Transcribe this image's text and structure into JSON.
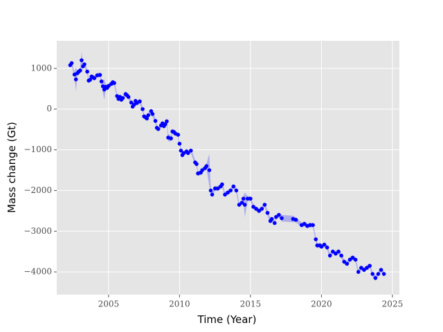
{
  "chart_data": {
    "type": "scatter",
    "x_label": "Time (Year)",
    "y_label": "Mass change (Gt)",
    "xlim": [
      2001.35,
      2025.49
    ],
    "ylim": [
      -4559,
      1678
    ],
    "xticks": [
      2005,
      2010,
      2015,
      2020,
      2025
    ],
    "yticks": [
      {
        "value": -4000,
        "label": "−4000"
      },
      {
        "value": -3000,
        "label": "−3000"
      },
      {
        "value": -2000,
        "label": "−2000"
      },
      {
        "value": -1000,
        "label": "−1000"
      },
      0,
      1000
    ],
    "grid": true,
    "background": "#e5e5e5",
    "band_color": "#6a6af0",
    "x": [
      2002.3,
      2002.4,
      2002.6,
      2002.7,
      2002.8,
      2002.9,
      2003.0,
      2003.1,
      2003.2,
      2003.3,
      2003.5,
      2003.6,
      2003.7,
      2003.8,
      2003.9,
      2004.0,
      2004.2,
      2004.4,
      2004.5,
      2004.6,
      2004.7,
      2004.8,
      2004.9,
      2005.0,
      2005.2,
      2005.3,
      2005.4,
      2005.6,
      2005.7,
      2005.8,
      2005.9,
      2006.0,
      2006.2,
      2006.3,
      2006.4,
      2006.6,
      2006.7,
      2006.8,
      2006.9,
      2007.0,
      2007.2,
      2007.4,
      2007.5,
      2007.6,
      2007.7,
      2007.8,
      2008.0,
      2008.1,
      2008.3,
      2008.4,
      2008.5,
      2008.7,
      2008.8,
      2008.9,
      2009.0,
      2009.1,
      2009.2,
      2009.4,
      2009.5,
      2009.6,
      2009.7,
      2009.9,
      2010.0,
      2010.1,
      2010.2,
      2010.3,
      2010.5,
      2010.6,
      2010.8,
      2011.1,
      2011.2,
      2011.3,
      2011.5,
      2011.6,
      2011.8,
      2011.9,
      2012.1,
      2012.2,
      2012.3,
      2012.5,
      2012.7,
      2012.9,
      2013.0,
      2013.2,
      2013.4,
      2013.6,
      2013.8,
      2014.0,
      2014.2,
      2014.4,
      2014.5,
      2014.6,
      2014.8,
      2015.0,
      2015.2,
      2015.4,
      2015.6,
      2015.8,
      2016.0,
      2016.2,
      2016.4,
      2016.5,
      2016.7,
      2016.8,
      2017.0,
      2017.2,
      2018.0,
      2018.2,
      2018.6,
      2018.8,
      2019.0,
      2019.2,
      2019.4,
      2019.6,
      2019.7,
      2019.9,
      2020.0,
      2020.2,
      2020.4,
      2020.6,
      2020.8,
      2021.0,
      2021.2,
      2021.4,
      2021.6,
      2021.8,
      2022.0,
      2022.2,
      2022.4,
      2022.6,
      2022.8,
      2023.0,
      2023.2,
      2023.4,
      2023.6,
      2023.8,
      2024.0,
      2024.2,
      2024.4
    ],
    "series": [
      {
        "color": "#0000ff",
        "values": [
          1080,
          1130,
          850,
          730,
          880,
          920,
          950,
          1200,
          1050,
          1100,
          920,
          700,
          720,
          800,
          780,
          760,
          830,
          840,
          680,
          560,
          480,
          550,
          520,
          570,
          620,
          660,
          640,
          320,
          250,
          300,
          230,
          270,
          370,
          340,
          300,
          160,
          60,
          110,
          200,
          150,
          190,
          0,
          -180,
          -200,
          -230,
          -150,
          -50,
          -120,
          -290,
          -460,
          -490,
          -400,
          -350,
          -420,
          -370,
          -300,
          -700,
          -720,
          -550,
          -560,
          -600,
          -630,
          -850,
          -1020,
          -1130,
          -1080,
          -1040,
          -1080,
          -1020,
          -1310,
          -1350,
          -1580,
          -1560,
          -1500,
          -1450,
          -1400,
          -1500,
          -2000,
          -2100,
          -1950,
          -1950,
          -1900,
          -1850,
          -2100,
          -2050,
          -2000,
          -1900,
          -2000,
          -2350,
          -2300,
          -2200,
          -2350,
          -2200,
          -2200,
          -2400,
          -2450,
          -2500,
          -2450,
          -2350,
          -2550,
          -2750,
          -2700,
          -2800,
          -2650,
          -2600,
          -2680,
          -2700,
          -2720,
          -2850,
          -2820,
          -2870,
          -2850,
          -2850,
          -3200,
          -3350,
          -3350,
          -3380,
          -3330,
          -3400,
          -3600,
          -3500,
          -3550,
          -3500,
          -3600,
          -3750,
          -3800,
          -3700,
          -3650,
          -3700,
          -4000,
          -3900,
          -3950,
          -3900,
          -3850,
          -4050,
          -4150,
          -4050,
          -3950,
          -4050
        ],
        "errors": [
          60,
          60,
          60,
          300,
          60,
          60,
          60,
          200,
          60,
          60,
          60,
          60,
          60,
          60,
          60,
          60,
          60,
          60,
          60,
          150,
          250,
          60,
          60,
          60,
          60,
          60,
          60,
          60,
          60,
          60,
          60,
          60,
          60,
          60,
          60,
          60,
          60,
          60,
          60,
          60,
          60,
          60,
          60,
          60,
          60,
          60,
          60,
          60,
          60,
          60,
          60,
          60,
          60,
          60,
          60,
          60,
          100,
          60,
          60,
          60,
          60,
          60,
          60,
          60,
          60,
          60,
          60,
          60,
          60,
          60,
          60,
          60,
          60,
          60,
          60,
          60,
          400,
          60,
          60,
          60,
          60,
          60,
          60,
          60,
          60,
          60,
          60,
          60,
          60,
          60,
          60,
          300,
          60,
          60,
          60,
          60,
          60,
          60,
          60,
          60,
          60,
          60,
          60,
          60,
          60,
          80,
          80,
          60,
          60,
          60,
          60,
          60,
          60,
          60,
          60,
          60,
          60,
          60,
          60,
          60,
          60,
          60,
          60,
          60,
          60,
          60,
          60,
          60,
          60,
          60,
          60,
          60,
          60,
          60,
          60,
          60,
          60,
          60,
          60
        ]
      }
    ]
  }
}
